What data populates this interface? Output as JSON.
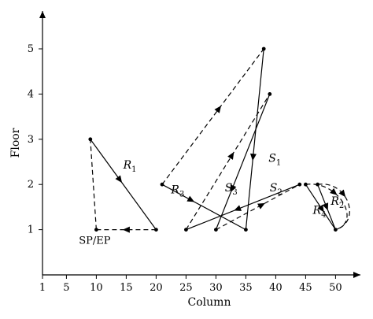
{
  "chart_data": {
    "type": "line",
    "xlabel": "Column",
    "ylabel": "Floor",
    "x_ticks": [
      1,
      5,
      10,
      15,
      20,
      25,
      30,
      35,
      40,
      45,
      50
    ],
    "y_ticks": [
      1,
      2,
      3,
      4,
      5
    ],
    "xlim": [
      1,
      53
    ],
    "ylim": [
      0,
      5.8
    ],
    "grid": false,
    "annotation": {
      "text": "SP/EP",
      "x": 10,
      "y": 1
    },
    "route_labels": [
      {
        "main": "R",
        "sub": "1",
        "x": 14.5,
        "y": 2.35
      },
      {
        "main": "R",
        "sub": "2",
        "x": 49.2,
        "y": 1.55
      },
      {
        "main": "R",
        "sub": "3",
        "x": 22.5,
        "y": 1.8
      },
      {
        "main": "R",
        "sub": "4",
        "x": 46.2,
        "y": 1.35
      },
      {
        "main": "S",
        "sub": "1",
        "x": 38.8,
        "y": 2.5
      },
      {
        "main": "S",
        "sub": "2",
        "x": 39.0,
        "y": 1.85
      },
      {
        "main": "S",
        "sub": "3",
        "x": 31.5,
        "y": 1.85
      }
    ],
    "series": [
      {
        "style": "dashed",
        "points": [
          [
            20,
            1
          ],
          [
            10,
            1
          ]
        ],
        "arrows": [
          0.5
        ]
      },
      {
        "style": "dashed",
        "points": [
          [
            10,
            1
          ],
          [
            9,
            3
          ]
        ],
        "arrows": []
      },
      {
        "style": "solid",
        "points": [
          [
            9,
            3
          ],
          [
            20,
            1
          ]
        ],
        "arrows": [
          0.45
        ]
      },
      {
        "style": "solid",
        "points": [
          [
            21,
            2
          ],
          [
            35,
            1
          ]
        ],
        "arrows": [
          0.35
        ]
      },
      {
        "style": "dashed",
        "points": [
          [
            21,
            2
          ],
          [
            38,
            5
          ]
        ],
        "arrows": [
          0.56
        ]
      },
      {
        "style": "solid",
        "points": [
          [
            38,
            5
          ],
          [
            35,
            1
          ]
        ],
        "arrows": [
          0.6
        ]
      },
      {
        "style": "dashed",
        "points": [
          [
            25,
            1
          ],
          [
            39,
            4
          ]
        ],
        "arrows": [
          0.55
        ]
      },
      {
        "style": "solid",
        "points": [
          [
            39,
            4
          ],
          [
            30,
            1
          ]
        ],
        "arrows": [
          0.7
        ]
      },
      {
        "style": "dashed",
        "points": [
          [
            30,
            1
          ],
          [
            44,
            2
          ]
        ],
        "arrows": [
          0.55
        ]
      },
      {
        "style": "solid",
        "points": [
          [
            44,
            2
          ],
          [
            25,
            1
          ]
        ],
        "arrows": [
          0.55
        ]
      },
      {
        "style": "solid",
        "points": [
          [
            45,
            2
          ],
          [
            50,
            1
          ]
        ],
        "arrows": [
          0.55
        ]
      },
      {
        "style": "solid",
        "points": [
          [
            47,
            2
          ],
          [
            50,
            1
          ]
        ],
        "arrows": [
          0.5
        ]
      },
      {
        "style": "dashed",
        "curve": true,
        "points": [
          [
            45,
            2
          ],
          [
            50,
            1
          ]
        ],
        "arrows": []
      },
      {
        "style": "dashed",
        "curve": true,
        "points": [
          [
            47,
            2
          ],
          [
            50,
            1
          ]
        ],
        "arrows": []
      }
    ]
  }
}
